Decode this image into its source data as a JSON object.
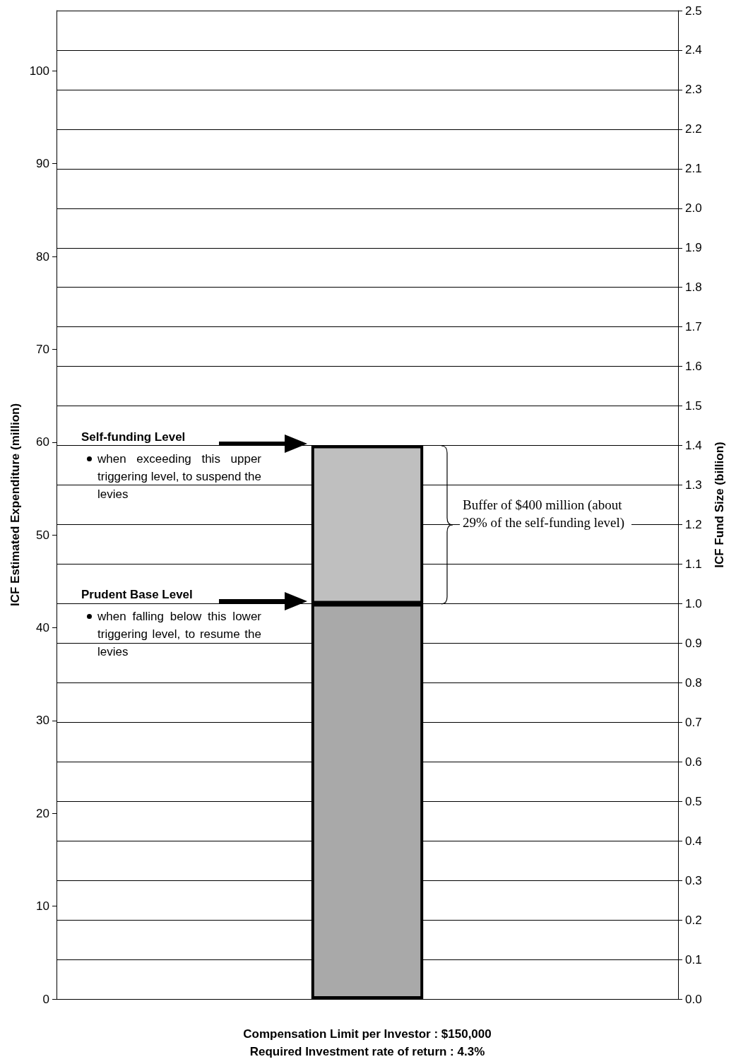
{
  "chart_data": {
    "type": "bar",
    "stacked": true,
    "categories": [
      null
    ],
    "series": [
      {
        "color": "#a9a9a9",
        "values": [
          1.0
        ],
        "axis": "y2"
      },
      {
        "color": "#bfbfbf",
        "values": [
          0.4
        ],
        "axis": "y2"
      }
    ],
    "xlabel": "Compensation Limit per Investor : $150,000\nRequired Investment rate of return : 4.3%",
    "ylabel": "ICF Estimated Expenditure (million)",
    "y2label": "ICF Fund Size (billion)",
    "ylim": [
      0,
      106.5
    ],
    "yticks": [
      0,
      10,
      20,
      30,
      40,
      50,
      60,
      70,
      80,
      90,
      100
    ],
    "y2lim": [
      0,
      2.5
    ],
    "y2ticks": [
      {
        "value": 0,
        "label": "0.0"
      },
      0.1,
      0.2,
      0.3,
      0.4,
      0.5,
      0.6,
      0.7,
      0.8,
      0.9,
      {
        "value": 1,
        "label": "1.0"
      },
      1.1,
      1.2,
      1.3,
      1.4,
      1.5,
      1.6,
      1.7,
      1.8,
      1.9,
      {
        "value": 2,
        "label": "2.0"
      },
      2.1,
      2.2,
      2.3,
      2.4,
      2.5
    ],
    "grid": true,
    "annotations": [
      "Self-funding Level",
      "when exceeding this upper triggering level, to suspend the levies",
      "Prudent Base Level",
      "when falling below this lower triggering level, to resume the levies",
      "Buffer of $400 million (about 29% of the self-funding level)"
    ]
  }
}
